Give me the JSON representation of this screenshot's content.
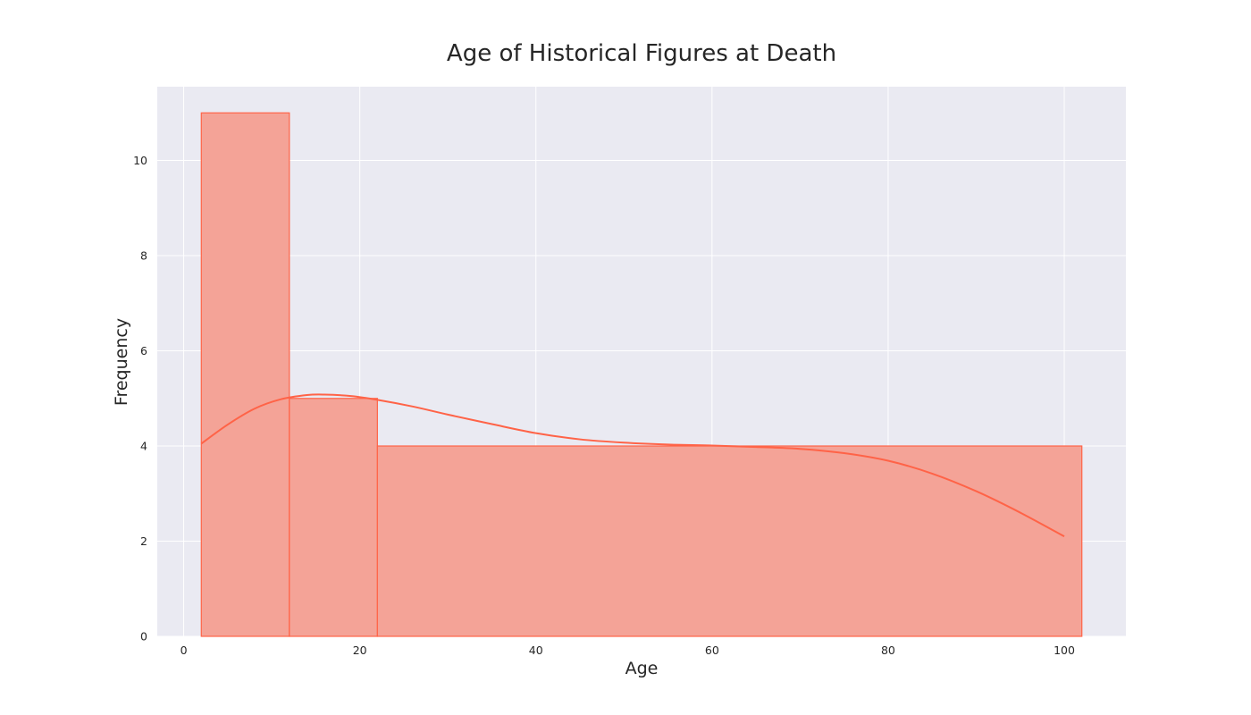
{
  "chart_data": {
    "type": "histogram",
    "title": "Age of Historical Figures at Death",
    "xlabel": "Age",
    "ylabel": "Frequency",
    "xlim": [
      -3,
      107
    ],
    "ylim": [
      0,
      11.55
    ],
    "xticks": [
      0,
      20,
      40,
      60,
      80,
      100
    ],
    "yticks": [
      0,
      2,
      4,
      6,
      8,
      10
    ],
    "grid": true,
    "legend": "none",
    "bins": [
      {
        "start": 2,
        "end": 12,
        "count": 11
      },
      {
        "start": 12,
        "end": 22,
        "count": 5
      },
      {
        "start": 22,
        "end": 102,
        "count": 4
      }
    ],
    "kde": {
      "x": [
        2,
        5,
        8,
        11,
        14,
        16,
        19,
        22,
        26,
        30,
        35,
        40,
        45,
        50,
        55,
        60,
        65,
        70,
        75,
        80,
        85,
        90,
        95,
        100
      ],
      "y": [
        4.05,
        4.45,
        4.78,
        4.98,
        5.07,
        5.08,
        5.05,
        4.97,
        4.83,
        4.66,
        4.46,
        4.27,
        4.14,
        4.07,
        4.03,
        4.01,
        3.98,
        3.94,
        3.85,
        3.69,
        3.42,
        3.05,
        2.6,
        2.1
      ]
    },
    "colors": {
      "bar_fill": "#f4a397",
      "bar_edge": "#ff6347",
      "kde_line": "#ff6347",
      "plot_background": "#eaeaf2",
      "grid": "#ffffff"
    }
  }
}
